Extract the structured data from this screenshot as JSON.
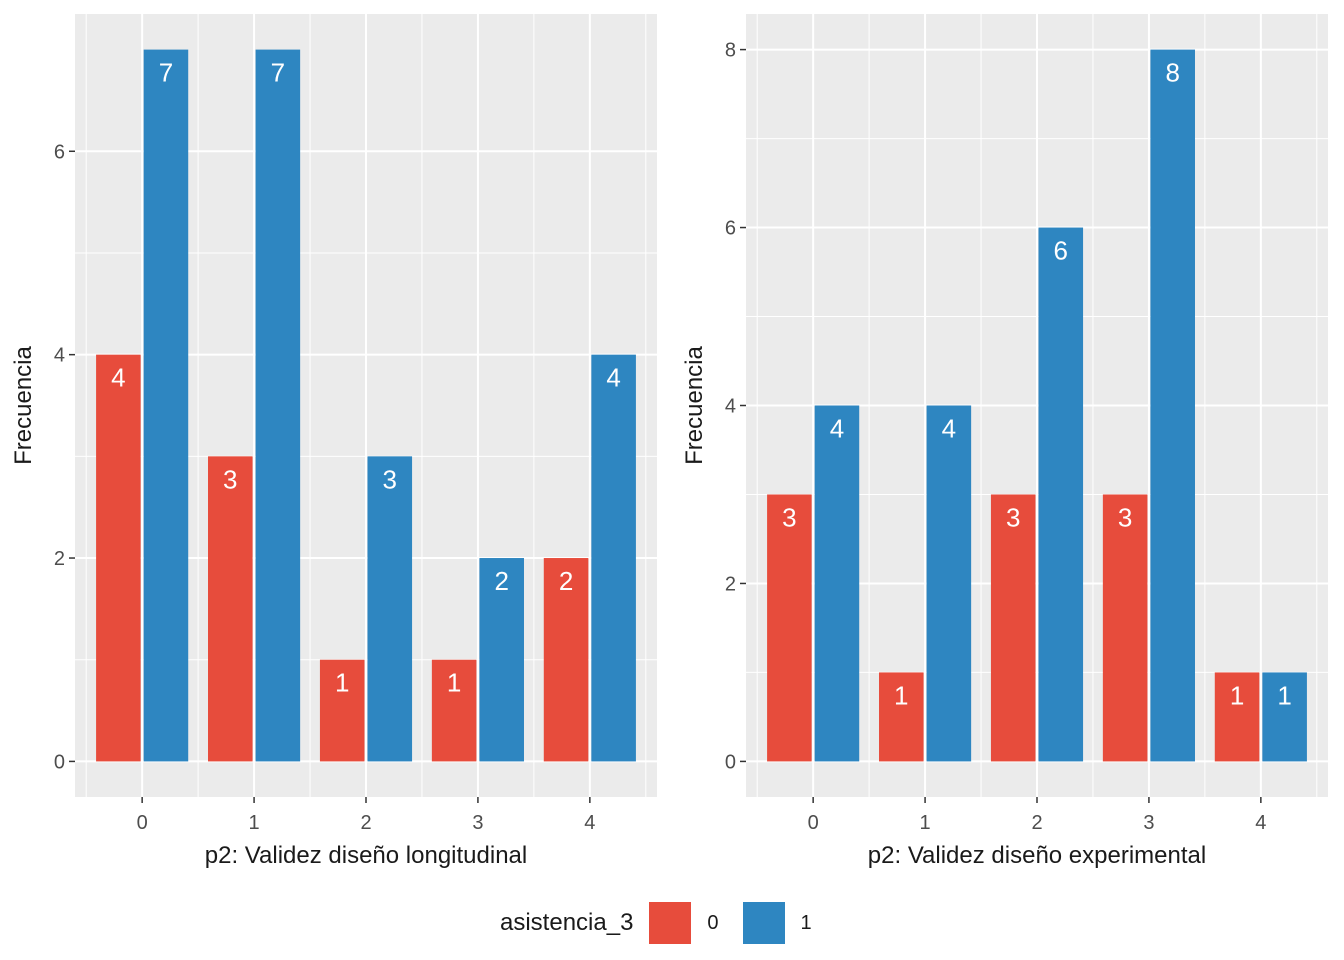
{
  "legend": {
    "title": "asistencia_3",
    "entries": [
      {
        "label": "0",
        "color": "#E74C3C"
      },
      {
        "label": "1",
        "color": "#2E86C1"
      }
    ],
    "position": "bottom"
  },
  "chart_data": [
    {
      "type": "bar",
      "categories": [
        "0",
        "1",
        "2",
        "3",
        "4"
      ],
      "series": [
        {
          "name": "0",
          "values": [
            4,
            3,
            1,
            1,
            2
          ]
        },
        {
          "name": "1",
          "values": [
            7,
            7,
            3,
            2,
            4
          ]
        }
      ],
      "xlabel": "p2: Validez diseño longitudinal",
      "ylabel": "Frecuencia",
      "ylim": [
        -0.35,
        7.35
      ],
      "yticks": [
        0,
        2,
        4,
        6
      ],
      "grid": true
    },
    {
      "type": "bar",
      "categories": [
        "0",
        "1",
        "2",
        "3",
        "4"
      ],
      "series": [
        {
          "name": "0",
          "values": [
            3,
            1,
            3,
            3,
            1
          ]
        },
        {
          "name": "1",
          "values": [
            4,
            4,
            6,
            8,
            1
          ]
        }
      ],
      "xlabel": "p2: Validez diseño experimental",
      "ylabel": "Frecuencia",
      "ylim": [
        -0.4,
        8.4
      ],
      "yticks": [
        0,
        2,
        4,
        6,
        8
      ],
      "grid": true
    }
  ]
}
